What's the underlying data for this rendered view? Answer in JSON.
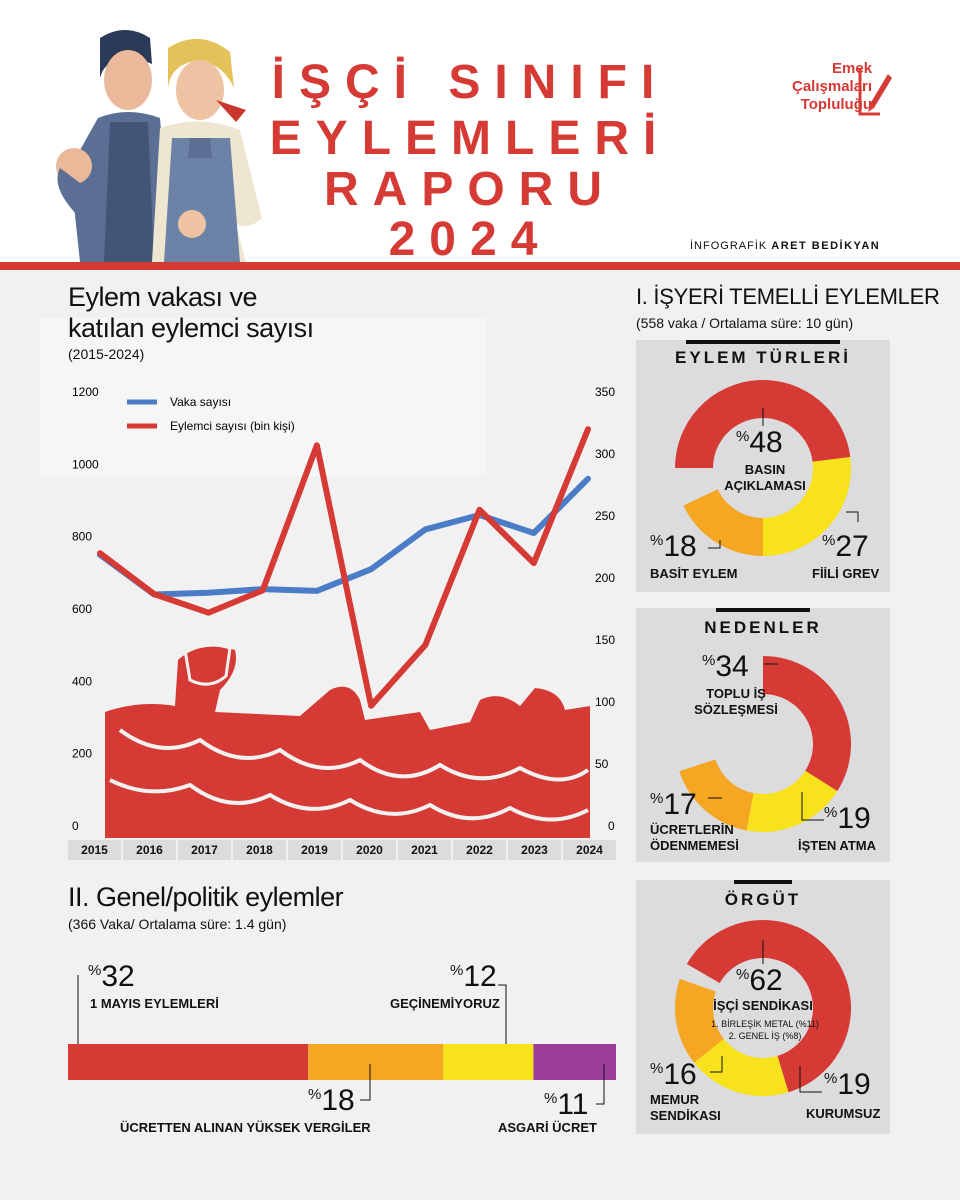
{
  "header": {
    "title_lines": [
      "İŞÇİ SINIFI",
      "EYLEMLERİ",
      "RAPORU",
      "2024"
    ],
    "credit_prefix": "İNFOGRAFİK",
    "credit_name": "ARET BEDİKYAN",
    "logo_lines": [
      "Emek",
      "Çalışmaları",
      "Topluluğu"
    ],
    "illustration": "two-workers-illustration"
  },
  "colors": {
    "red": "#d63a35",
    "blue": "#4a7cc8",
    "orange": "#f5a623",
    "yellow": "#f7e21b",
    "purple": "#9b3d9b",
    "panel": "#dcdbdd",
    "background": "#f2f1f1"
  },
  "line_chart": {
    "title_line1": "Eylem vakası ve",
    "title_line2": "katılan eylemci sayısı",
    "subtitle": "(2015-2024)",
    "legend_blue": "Vaka sayısı",
    "legend_red": "Eylemci sayısı (bin kişi)",
    "left_ticks": [
      "1200",
      "1000",
      "800",
      "600",
      "400",
      "200",
      "0"
    ],
    "right_ticks": [
      "350",
      "300",
      "250",
      "200",
      "150",
      "100",
      "50",
      "0"
    ],
    "years": [
      "2015",
      "2016",
      "2017",
      "2018",
      "2019",
      "2020",
      "2021",
      "2022",
      "2023",
      "2024"
    ],
    "background_image": "protest-crowd-fists"
  },
  "chart_data": [
    {
      "type": "line",
      "x": [
        "2015",
        "2016",
        "2017",
        "2018",
        "2019",
        "2020",
        "2021",
        "2022",
        "2023",
        "2024"
      ],
      "series": [
        {
          "name": "Vaka sayısı",
          "axis": "left",
          "color": "#4a7cc8",
          "values": [
            750,
            640,
            645,
            655,
            650,
            710,
            820,
            860,
            810,
            960
          ]
        },
        {
          "name": "Eylemci sayısı (bin kişi)",
          "axis": "right",
          "color": "#d63a35",
          "values": [
            220,
            187,
            172,
            190,
            307,
            97,
            146,
            255,
            212,
            320
          ]
        }
      ],
      "title": "Eylem vakası ve katılan eylemci sayısı",
      "subtitle": "(2015-2024)",
      "ylim_left": [
        0,
        1200
      ],
      "ylim_right": [
        0,
        350
      ],
      "legend": "top-left",
      "grid": false
    },
    {
      "type": "pie",
      "title": "EYLEM TÜRLERİ",
      "categories": [
        "BASIN AÇIKLAMASI",
        "FİİLİ GREV",
        "BASİT EYLEM"
      ],
      "values": [
        48,
        27,
        18
      ]
    },
    {
      "type": "pie",
      "title": "NEDENLER",
      "categories": [
        "TOPLU İŞ SÖZLEŞMESİ",
        "İŞTEN ATMA",
        "ÜCRETLERİN ÖDENMEMESİ"
      ],
      "values": [
        34,
        19,
        17
      ]
    },
    {
      "type": "pie",
      "title": "ÖRGÜT",
      "categories": [
        "İŞÇİ SENDİKASI",
        "KURUMSUZ",
        "MEMUR SENDİKASI"
      ],
      "values": [
        62,
        19,
        16
      ]
    },
    {
      "type": "bar",
      "title": "II. Genel/politik eylemler",
      "categories": [
        "1 MAYIS EYLEMLERİ",
        "ÜCRETTEN ALINAN YÜKSEK VERGİLER",
        "GEÇİNEMİYORUZ",
        "ASGARİ ÜCRET"
      ],
      "values": [
        32,
        18,
        12,
        11
      ]
    }
  ],
  "section1": {
    "title": "I. İŞYERİ TEMELLİ EYLEMLER",
    "subtitle": "(558 vaka / Ortalama süre: 10 gün)"
  },
  "donut_types": {
    "title": "EYLEM TÜRLERİ",
    "items": [
      {
        "pct_sign": "%",
        "pct": "48",
        "label": "BASIN AÇIKLAMASI",
        "label_lines": [
          "BASIN",
          "AÇIKLAMASI"
        ]
      },
      {
        "pct_sign": "%",
        "pct": "27",
        "label": "FİİLİ GREV"
      },
      {
        "pct_sign": "%",
        "pct": "18",
        "label": "BASİT EYLEM"
      }
    ]
  },
  "donut_reasons": {
    "title": "NEDENLER",
    "items": [
      {
        "pct_sign": "%",
        "pct": "34",
        "label_lines": [
          "TOPLU İŞ",
          "SÖZLEŞMESİ"
        ]
      },
      {
        "pct_sign": "%",
        "pct": "19",
        "label": "İŞTEN ATMA"
      },
      {
        "pct_sign": "%",
        "pct": "17",
        "label_lines": [
          "ÜCRETLERİN",
          "ÖDENMEMESİ"
        ]
      }
    ]
  },
  "donut_org": {
    "title": "ÖRGÜT",
    "items": [
      {
        "pct_sign": "%",
        "pct": "62",
        "label": "İŞÇİ SENDİKASI",
        "notes": [
          "1. BİRLEŞİK METAL (%11)",
          "2. GENEL İŞ (%8)"
        ]
      },
      {
        "pct_sign": "%",
        "pct": "19",
        "label": "KURUMSUZ"
      },
      {
        "pct_sign": "%",
        "pct": "16",
        "label_lines": [
          "MEMUR",
          "SENDİKASI"
        ]
      }
    ]
  },
  "section2": {
    "title": "II. Genel/politik eylemler",
    "subtitle": "(366 Vaka/ Ortalama süre: 1.4 gün)",
    "items": [
      {
        "pct_sign": "%",
        "pct": "32",
        "label": "1 MAYIS EYLEMLERİ"
      },
      {
        "pct_sign": "%",
        "pct": "18",
        "label": "ÜCRETTEN ALINAN YÜKSEK VERGİLER"
      },
      {
        "pct_sign": "%",
        "pct": "12",
        "label": "GEÇİNEMİYORUZ"
      },
      {
        "pct_sign": "%",
        "pct": "11",
        "label": "ASGARİ ÜCRET"
      }
    ]
  }
}
